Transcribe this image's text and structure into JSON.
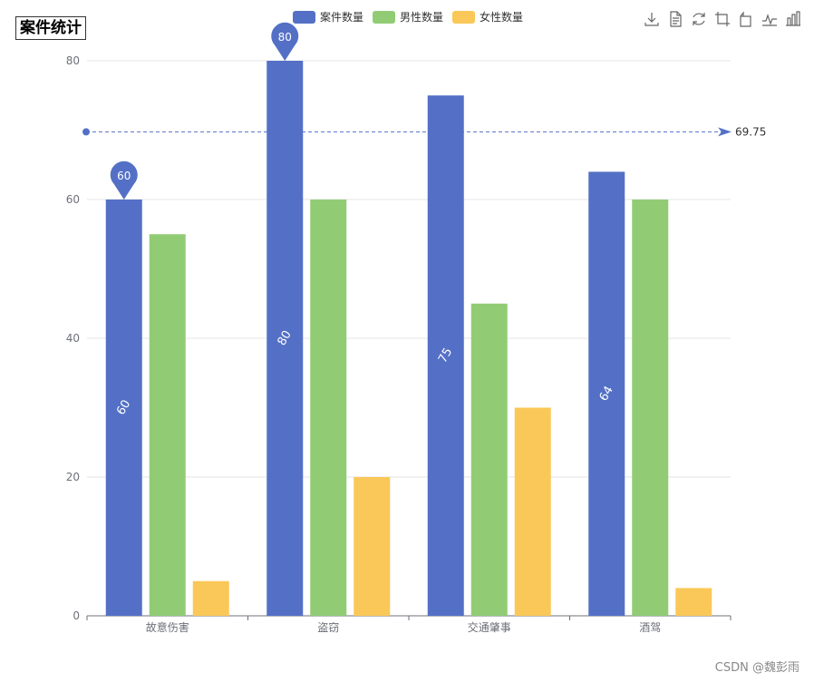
{
  "chart_data": {
    "type": "bar",
    "title": "案件统计",
    "categories": [
      "故意伤害",
      "盗窃",
      "交通肇事",
      "酒驾"
    ],
    "series": [
      {
        "name": "案件数量",
        "color": "#5470c6",
        "values": [
          60,
          80,
          75,
          64
        ]
      },
      {
        "name": "男性数量",
        "color": "#91cc75",
        "values": [
          55,
          60,
          45,
          60
        ]
      },
      {
        "name": "女性数量",
        "color": "#fac858",
        "values": [
          5,
          20,
          30,
          4
        ]
      }
    ],
    "ylim": [
      0,
      80
    ],
    "yticks": [
      0,
      20,
      40,
      60,
      80
    ],
    "mark_points": [
      {
        "category": "故意伤害",
        "value": 60,
        "label": "60"
      },
      {
        "category": "盗窃",
        "value": 80,
        "label": "80"
      }
    ],
    "mark_line": {
      "type": "average",
      "value": 69.75,
      "label": "69.75"
    },
    "bar_labels": [
      "60",
      "80",
      "75",
      "64"
    ]
  },
  "toolbox": [
    "download-icon",
    "data-view-icon",
    "restore-icon",
    "zoom-icon",
    "zoom-reset-icon",
    "line-chart-icon",
    "bar-chart-icon"
  ],
  "watermark": "CSDN @魏彭雨"
}
